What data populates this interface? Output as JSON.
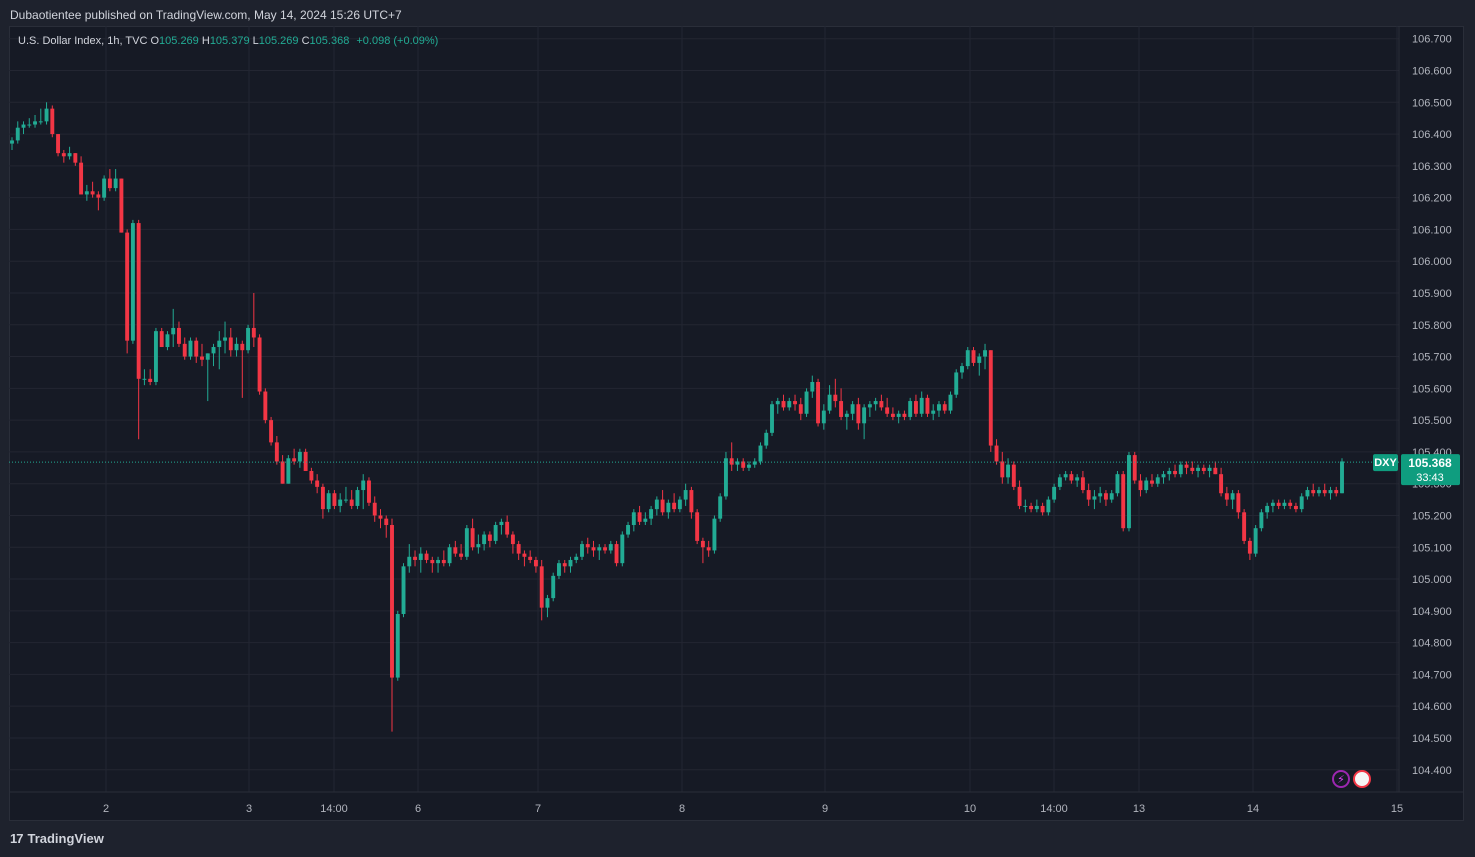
{
  "publisher_line": "Dubaotientee published on TradingView.com, May 14, 2024 15:26 UTC+7",
  "legend": {
    "instrument": "U.S. Dollar Index, 1h, TVC",
    "o_label": "O",
    "o_value": "105.269",
    "h_label": "H",
    "h_value": "105.379",
    "l_label": "L",
    "l_value": "105.269",
    "c_label": "C",
    "c_value": "105.368",
    "change": "+0.098 (+0.09%)"
  },
  "price_tag": {
    "symbol": "DXY",
    "price": "105.368",
    "countdown": "33:43"
  },
  "footer": {
    "brand": "TradingView"
  },
  "colors": {
    "up": "#22ab94",
    "down": "#f23645",
    "bg": "#161a25",
    "grid": "#232632",
    "tag": "#0f9d7f"
  },
  "icons": [
    "lightning-icon",
    "us-flag-icon"
  ],
  "chart_data": {
    "type": "candlestick",
    "title": "U.S. Dollar Index, 1h, TVC",
    "ylim": [
      104.33,
      106.74
    ],
    "y_ticks": [
      "106.700",
      "106.600",
      "106.500",
      "106.400",
      "106.300",
      "106.200",
      "106.100",
      "106.000",
      "105.900",
      "105.800",
      "105.700",
      "105.600",
      "105.500",
      "105.400",
      "105.300",
      "105.200",
      "105.100",
      "105.000",
      "104.900",
      "104.800",
      "104.700",
      "104.600",
      "104.500",
      "104.400"
    ],
    "x_ticks": [
      "2",
      "3",
      "14:00",
      "6",
      "7",
      "8",
      "9",
      "10",
      "14:00",
      "13",
      "14",
      "15"
    ],
    "last_price": 105.368,
    "grid": true,
    "ohlc": [
      [
        106.37,
        106.39,
        106.35,
        106.38
      ],
      [
        106.38,
        106.44,
        106.37,
        106.42
      ],
      [
        106.42,
        106.44,
        106.4,
        106.43
      ],
      [
        106.43,
        106.45,
        106.42,
        106.43
      ],
      [
        106.43,
        106.46,
        106.42,
        106.44
      ],
      [
        106.44,
        106.48,
        106.43,
        106.44
      ],
      [
        106.44,
        106.5,
        106.43,
        106.48
      ],
      [
        106.48,
        106.49,
        106.39,
        106.4
      ],
      [
        106.4,
        106.4,
        106.33,
        106.34
      ],
      [
        106.34,
        106.35,
        106.31,
        106.33
      ],
      [
        106.33,
        106.36,
        106.32,
        106.34
      ],
      [
        106.34,
        106.34,
        106.3,
        106.31
      ],
      [
        106.31,
        106.33,
        106.21,
        106.21
      ],
      [
        106.21,
        106.24,
        106.19,
        106.22
      ],
      [
        106.22,
        106.25,
        106.2,
        106.21
      ],
      [
        106.21,
        106.22,
        106.16,
        106.2
      ],
      [
        106.2,
        106.27,
        106.19,
        106.26
      ],
      [
        106.26,
        106.29,
        106.22,
        106.23
      ],
      [
        106.23,
        106.29,
        106.22,
        106.26
      ],
      [
        106.26,
        106.26,
        106.09,
        106.09
      ],
      [
        106.09,
        106.1,
        105.71,
        105.75
      ],
      [
        105.75,
        106.13,
        105.74,
        106.12
      ],
      [
        106.12,
        106.13,
        105.44,
        105.63
      ],
      [
        105.63,
        105.66,
        105.61,
        105.63
      ],
      [
        105.63,
        105.66,
        105.61,
        105.62
      ],
      [
        105.62,
        105.79,
        105.61,
        105.78
      ],
      [
        105.78,
        105.79,
        105.73,
        105.73
      ],
      [
        105.73,
        105.78,
        105.72,
        105.77
      ],
      [
        105.77,
        105.85,
        105.73,
        105.79
      ],
      [
        105.79,
        105.81,
        105.73,
        105.74
      ],
      [
        105.74,
        105.76,
        105.69,
        105.7
      ],
      [
        105.7,
        105.76,
        105.69,
        105.75
      ],
      [
        105.75,
        105.76,
        105.68,
        105.7
      ],
      [
        105.7,
        105.74,
        105.67,
        105.69
      ],
      [
        105.69,
        105.71,
        105.56,
        105.71
      ],
      [
        105.71,
        105.74,
        105.67,
        105.73
      ],
      [
        105.73,
        105.78,
        105.66,
        105.75
      ],
      [
        105.75,
        105.81,
        105.71,
        105.76
      ],
      [
        105.76,
        105.79,
        105.7,
        105.72
      ],
      [
        105.72,
        105.76,
        105.7,
        105.74
      ],
      [
        105.74,
        105.75,
        105.57,
        105.72
      ],
      [
        105.72,
        105.8,
        105.71,
        105.79
      ],
      [
        105.79,
        105.9,
        105.73,
        105.76
      ],
      [
        105.76,
        105.77,
        105.58,
        105.59
      ],
      [
        105.59,
        105.6,
        105.49,
        105.5
      ],
      [
        105.5,
        105.51,
        105.42,
        105.43
      ],
      [
        105.43,
        105.45,
        105.36,
        105.37
      ],
      [
        105.37,
        105.39,
        105.3,
        105.3
      ],
      [
        105.3,
        105.39,
        105.3,
        105.38
      ],
      [
        105.38,
        105.41,
        105.36,
        105.37
      ],
      [
        105.37,
        105.41,
        105.35,
        105.4
      ],
      [
        105.4,
        105.41,
        105.34,
        105.34
      ],
      [
        105.34,
        105.35,
        105.3,
        105.31
      ],
      [
        105.31,
        105.33,
        105.27,
        105.29
      ],
      [
        105.29,
        105.3,
        105.19,
        105.22
      ],
      [
        105.22,
        105.28,
        105.21,
        105.27
      ],
      [
        105.27,
        105.28,
        105.22,
        105.23
      ],
      [
        105.23,
        105.27,
        105.21,
        105.25
      ],
      [
        105.25,
        105.29,
        105.24,
        105.25
      ],
      [
        105.25,
        105.28,
        105.22,
        105.23
      ],
      [
        105.23,
        105.29,
        105.22,
        105.28
      ],
      [
        105.28,
        105.33,
        105.22,
        105.31
      ],
      [
        105.31,
        105.32,
        105.23,
        105.24
      ],
      [
        105.24,
        105.26,
        105.18,
        105.2
      ],
      [
        105.2,
        105.22,
        105.16,
        105.19
      ],
      [
        105.19,
        105.2,
        105.13,
        105.17
      ],
      [
        105.17,
        105.19,
        104.52,
        104.69
      ],
      [
        104.69,
        104.9,
        104.68,
        104.89
      ],
      [
        104.89,
        105.05,
        104.88,
        105.04
      ],
      [
        105.04,
        105.11,
        105.02,
        105.07
      ],
      [
        105.07,
        105.09,
        105.04,
        105.06
      ],
      [
        105.06,
        105.1,
        105.02,
        105.08
      ],
      [
        105.08,
        105.09,
        105.05,
        105.06
      ],
      [
        105.06,
        105.07,
        105.02,
        105.05
      ],
      [
        105.05,
        105.07,
        105.02,
        105.06
      ],
      [
        105.06,
        105.09,
        105.04,
        105.05
      ],
      [
        105.05,
        105.11,
        105.04,
        105.1
      ],
      [
        105.1,
        105.12,
        105.07,
        105.08
      ],
      [
        105.08,
        105.11,
        105.06,
        105.07
      ],
      [
        105.07,
        105.17,
        105.06,
        105.16
      ],
      [
        105.16,
        105.19,
        105.09,
        105.1
      ],
      [
        105.1,
        105.14,
        105.08,
        105.11
      ],
      [
        105.11,
        105.15,
        105.09,
        105.14
      ],
      [
        105.14,
        105.15,
        105.1,
        105.12
      ],
      [
        105.12,
        105.18,
        105.11,
        105.17
      ],
      [
        105.17,
        105.19,
        105.14,
        105.18
      ],
      [
        105.18,
        105.2,
        105.13,
        105.14
      ],
      [
        105.14,
        105.15,
        105.08,
        105.11
      ],
      [
        105.11,
        105.12,
        105.06,
        105.08
      ],
      [
        105.08,
        105.09,
        105.04,
        105.07
      ],
      [
        105.07,
        105.09,
        105.05,
        105.06
      ],
      [
        105.06,
        105.07,
        105.02,
        105.04
      ],
      [
        105.04,
        105.06,
        104.87,
        104.91
      ],
      [
        104.91,
        104.95,
        104.88,
        104.94
      ],
      [
        104.94,
        105.02,
        104.93,
        105.01
      ],
      [
        105.01,
        105.06,
        105.0,
        105.05
      ],
      [
        105.05,
        105.06,
        105.02,
        105.04
      ],
      [
        105.04,
        105.07,
        105.02,
        105.06
      ],
      [
        105.06,
        105.08,
        105.05,
        105.07
      ],
      [
        105.07,
        105.12,
        105.06,
        105.11
      ],
      [
        105.11,
        105.13,
        105.08,
        105.1
      ],
      [
        105.1,
        105.12,
        105.07,
        105.09
      ],
      [
        105.09,
        105.11,
        105.06,
        105.1
      ],
      [
        105.1,
        105.11,
        105.08,
        105.09
      ],
      [
        105.09,
        105.12,
        105.08,
        105.11
      ],
      [
        105.11,
        105.12,
        105.04,
        105.05
      ],
      [
        105.05,
        105.15,
        105.04,
        105.14
      ],
      [
        105.14,
        105.18,
        105.13,
        105.17
      ],
      [
        105.17,
        105.22,
        105.15,
        105.21
      ],
      [
        105.21,
        105.23,
        105.17,
        105.18
      ],
      [
        105.18,
        105.21,
        105.17,
        105.19
      ],
      [
        105.19,
        105.23,
        105.17,
        105.22
      ],
      [
        105.22,
        105.26,
        105.2,
        105.25
      ],
      [
        105.25,
        105.28,
        105.2,
        105.21
      ],
      [
        105.21,
        105.25,
        105.19,
        105.24
      ],
      [
        105.24,
        105.27,
        105.21,
        105.22
      ],
      [
        105.22,
        105.26,
        105.21,
        105.25
      ],
      [
        105.25,
        105.3,
        105.23,
        105.28
      ],
      [
        105.28,
        105.29,
        105.19,
        105.21
      ],
      [
        105.21,
        105.22,
        105.11,
        105.12
      ],
      [
        105.12,
        105.13,
        105.05,
        105.1
      ],
      [
        105.1,
        105.12,
        105.07,
        105.09
      ],
      [
        105.09,
        105.2,
        105.08,
        105.19
      ],
      [
        105.19,
        105.27,
        105.18,
        105.26
      ],
      [
        105.26,
        105.4,
        105.25,
        105.38
      ],
      [
        105.38,
        105.43,
        105.34,
        105.36
      ],
      [
        105.36,
        105.38,
        105.34,
        105.37
      ],
      [
        105.37,
        105.38,
        105.34,
        105.35
      ],
      [
        105.35,
        105.37,
        105.34,
        105.36
      ],
      [
        105.36,
        105.38,
        105.35,
        105.37
      ],
      [
        105.37,
        105.43,
        105.36,
        105.42
      ],
      [
        105.42,
        105.47,
        105.41,
        105.46
      ],
      [
        105.46,
        105.56,
        105.45,
        105.55
      ],
      [
        105.55,
        105.57,
        105.52,
        105.56
      ],
      [
        105.56,
        105.58,
        105.53,
        105.54
      ],
      [
        105.54,
        105.57,
        105.53,
        105.56
      ],
      [
        105.56,
        105.58,
        105.53,
        105.55
      ],
      [
        105.55,
        105.57,
        105.5,
        105.52
      ],
      [
        105.52,
        105.6,
        105.51,
        105.59
      ],
      [
        105.59,
        105.64,
        105.57,
        105.62
      ],
      [
        105.62,
        105.63,
        105.48,
        105.49
      ],
      [
        105.49,
        105.55,
        105.47,
        105.53
      ],
      [
        105.53,
        105.61,
        105.52,
        105.58
      ],
      [
        105.58,
        105.63,
        105.54,
        105.56
      ],
      [
        105.56,
        105.6,
        105.5,
        105.51
      ],
      [
        105.51,
        105.53,
        105.47,
        105.52
      ],
      [
        105.52,
        105.56,
        105.5,
        105.55
      ],
      [
        105.55,
        105.57,
        105.47,
        105.49
      ],
      [
        105.49,
        105.55,
        105.44,
        105.54
      ],
      [
        105.54,
        105.56,
        105.51,
        105.55
      ],
      [
        105.55,
        105.57,
        105.53,
        105.56
      ],
      [
        105.56,
        105.58,
        105.53,
        105.54
      ],
      [
        105.54,
        105.57,
        105.51,
        105.52
      ],
      [
        105.52,
        105.54,
        105.5,
        105.51
      ],
      [
        105.51,
        105.53,
        105.49,
        105.52
      ],
      [
        105.52,
        105.53,
        105.5,
        105.51
      ],
      [
        105.51,
        105.57,
        105.5,
        105.56
      ],
      [
        105.56,
        105.58,
        105.51,
        105.52
      ],
      [
        105.52,
        105.59,
        105.51,
        105.57
      ],
      [
        105.57,
        105.58,
        105.51,
        105.52
      ],
      [
        105.52,
        105.55,
        105.5,
        105.53
      ],
      [
        105.53,
        105.56,
        105.51,
        105.55
      ],
      [
        105.55,
        105.56,
        105.52,
        105.53
      ],
      [
        105.53,
        105.59,
        105.52,
        105.58
      ],
      [
        105.58,
        105.66,
        105.57,
        105.65
      ],
      [
        105.65,
        105.68,
        105.63,
        105.67
      ],
      [
        105.67,
        105.73,
        105.66,
        105.72
      ],
      [
        105.72,
        105.73,
        105.67,
        105.68
      ],
      [
        105.68,
        105.71,
        105.64,
        105.7
      ],
      [
        105.7,
        105.74,
        105.66,
        105.72
      ],
      [
        105.72,
        105.72,
        105.4,
        105.42
      ],
      [
        105.42,
        105.44,
        105.36,
        105.37
      ],
      [
        105.37,
        105.4,
        105.3,
        105.32
      ],
      [
        105.32,
        105.38,
        105.3,
        105.36
      ],
      [
        105.36,
        105.37,
        105.28,
        105.29
      ],
      [
        105.29,
        105.31,
        105.22,
        105.23
      ],
      [
        105.23,
        105.25,
        105.21,
        105.23
      ],
      [
        105.23,
        105.24,
        105.21,
        105.22
      ],
      [
        105.22,
        105.25,
        105.21,
        105.23
      ],
      [
        105.23,
        105.24,
        105.2,
        105.21
      ],
      [
        105.21,
        105.26,
        105.2,
        105.25
      ],
      [
        105.25,
        105.3,
        105.24,
        105.29
      ],
      [
        105.29,
        105.33,
        105.28,
        105.32
      ],
      [
        105.32,
        105.34,
        105.31,
        105.33
      ],
      [
        105.33,
        105.34,
        105.3,
        105.31
      ],
      [
        105.31,
        105.33,
        105.29,
        105.32
      ],
      [
        105.32,
        105.34,
        105.27,
        105.28
      ],
      [
        105.28,
        105.3,
        105.23,
        105.25
      ],
      [
        105.25,
        105.28,
        105.22,
        105.26
      ],
      [
        105.26,
        105.29,
        105.24,
        105.27
      ],
      [
        105.27,
        105.28,
        105.23,
        105.25
      ],
      [
        105.25,
        105.28,
        105.24,
        105.27
      ],
      [
        105.27,
        105.34,
        105.26,
        105.33
      ],
      [
        105.33,
        105.34,
        105.15,
        105.16
      ],
      [
        105.16,
        105.4,
        105.15,
        105.39
      ],
      [
        105.39,
        105.4,
        105.3,
        105.31
      ],
      [
        105.31,
        105.33,
        105.26,
        105.28
      ],
      [
        105.28,
        105.32,
        105.27,
        105.31
      ],
      [
        105.31,
        105.33,
        105.29,
        105.3
      ],
      [
        105.3,
        105.33,
        105.29,
        105.32
      ],
      [
        105.32,
        105.34,
        105.3,
        105.33
      ],
      [
        105.33,
        105.35,
        105.31,
        105.34
      ],
      [
        105.34,
        105.36,
        105.32,
        105.33
      ],
      [
        105.33,
        105.37,
        105.32,
        105.36
      ],
      [
        105.36,
        105.37,
        105.33,
        105.35
      ],
      [
        105.35,
        105.37,
        105.33,
        105.34
      ],
      [
        105.34,
        105.36,
        105.32,
        105.35
      ],
      [
        105.35,
        105.36,
        105.33,
        105.34
      ],
      [
        105.34,
        105.36,
        105.32,
        105.35
      ],
      [
        105.35,
        105.37,
        105.33,
        105.33
      ],
      [
        105.33,
        105.35,
        105.26,
        105.27
      ],
      [
        105.27,
        105.29,
        105.23,
        105.25
      ],
      [
        105.25,
        105.28,
        105.22,
        105.27
      ],
      [
        105.27,
        105.28,
        105.19,
        105.21
      ],
      [
        105.21,
        105.22,
        105.11,
        105.12
      ],
      [
        105.12,
        105.13,
        105.06,
        105.08
      ],
      [
        105.08,
        105.17,
        105.07,
        105.16
      ],
      [
        105.16,
        105.22,
        105.15,
        105.21
      ],
      [
        105.21,
        105.24,
        105.19,
        105.23
      ],
      [
        105.23,
        105.25,
        105.21,
        105.24
      ],
      [
        105.24,
        105.25,
        105.22,
        105.23
      ],
      [
        105.23,
        105.25,
        105.22,
        105.24
      ],
      [
        105.24,
        105.25,
        105.22,
        105.23
      ],
      [
        105.23,
        105.24,
        105.21,
        105.22
      ],
      [
        105.22,
        105.27,
        105.21,
        105.26
      ],
      [
        105.26,
        105.29,
        105.25,
        105.28
      ],
      [
        105.28,
        105.3,
        105.26,
        105.27
      ],
      [
        105.27,
        105.29,
        105.26,
        105.28
      ],
      [
        105.28,
        105.3,
        105.26,
        105.27
      ],
      [
        105.27,
        105.29,
        105.25,
        105.28
      ],
      [
        105.28,
        105.29,
        105.26,
        105.27
      ],
      [
        105.27,
        105.38,
        105.27,
        105.37
      ]
    ]
  }
}
